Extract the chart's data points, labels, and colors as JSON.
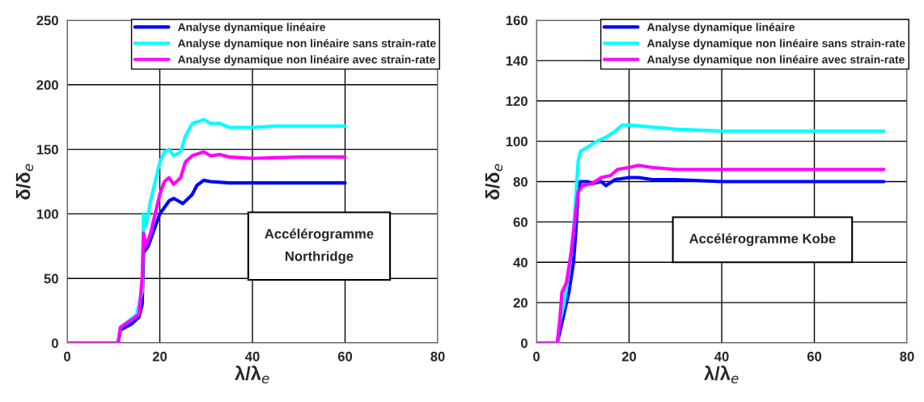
{
  "chart_data": [
    {
      "type": "line",
      "xlabel": "λ/λ$_{e}$",
      "ylabel": "δ/δ$_{e}$",
      "xlim": [
        0,
        80
      ],
      "xticks": [
        0,
        20,
        40,
        60,
        80
      ],
      "ylim": [
        0,
        250
      ],
      "yticks": [
        0,
        50,
        100,
        150,
        200,
        250
      ],
      "grid": true,
      "legend": "top right",
      "marker": "none",
      "line_style": "solid",
      "annotations": [
        "Accélérogramme\nNorthridge"
      ],
      "series": [
        {
          "name": "Analyse dynamique linéaire",
          "color": "#0000ff",
          "x": [
            0,
            11,
            11.5,
            14,
            15.5,
            16.2,
            16.5,
            17.5,
            19,
            20,
            22,
            23,
            25,
            27,
            28,
            29.5,
            31,
            35,
            40,
            50,
            60
          ],
          "values": [
            0,
            0,
            10,
            15,
            20,
            30,
            70,
            75,
            90,
            100,
            110,
            112,
            108,
            115,
            122,
            126,
            125,
            124,
            124,
            124,
            124
          ]
        },
        {
          "name": "Analyse dynamique non linéaire sans strain-rate",
          "color": "#00ffff",
          "x": [
            0,
            11,
            11.5,
            15,
            16.2,
            16.5,
            17,
            18,
            19,
            20,
            21,
            22,
            23,
            24.5,
            25.5,
            27,
            29.5,
            31,
            33,
            35,
            40,
            45,
            50,
            60
          ],
          "values": [
            0,
            0,
            12,
            22,
            40,
            100,
            90,
            110,
            125,
            140,
            148,
            150,
            145,
            148,
            160,
            170,
            173,
            170,
            170,
            167,
            167,
            168,
            168,
            168
          ]
        },
        {
          "name": "Analyse dynamique non linéaire avec strain-rate",
          "color": "#ff00ff",
          "x": [
            0,
            11,
            11.5,
            14,
            15.5,
            16.2,
            16.5,
            17,
            18,
            19,
            20,
            21,
            22,
            23,
            24.5,
            25.5,
            27,
            29.5,
            31,
            33,
            35,
            40,
            50,
            60
          ],
          "values": [
            0,
            0,
            12,
            18,
            22,
            50,
            85,
            75,
            85,
            100,
            115,
            125,
            128,
            123,
            128,
            140,
            145,
            148,
            145,
            146,
            144,
            143,
            144,
            144
          ]
        }
      ]
    },
    {
      "type": "line",
      "xlabel": "λ/λ$_{e}$",
      "ylabel": "δ/δ$_{e}$",
      "xlim": [
        0,
        80
      ],
      "xticks": [
        0,
        20,
        40,
        60,
        80
      ],
      "ylim": [
        0,
        160
      ],
      "yticks": [
        0,
        20,
        40,
        60,
        80,
        100,
        120,
        140,
        160
      ],
      "grid": true,
      "legend": "top right",
      "marker": "none",
      "line_style": "solid",
      "annotations": [
        "Accélérogramme Kobe"
      ],
      "series": [
        {
          "name": "Analyse dynamique linéaire",
          "color": "#0000ff",
          "x": [
            0,
            4.5,
            5,
            6,
            7,
            8,
            8.5,
            9,
            9.5,
            11,
            12,
            14,
            15,
            17,
            20,
            22,
            25,
            30,
            40,
            60,
            75
          ],
          "values": [
            0,
            0,
            5,
            15,
            25,
            40,
            55,
            75,
            80,
            80,
            79,
            80,
            78,
            81,
            82,
            82,
            81,
            81,
            80,
            80,
            80
          ]
        },
        {
          "name": "Analyse dynamique non linéaire sans strain-rate",
          "color": "#00ffff",
          "x": [
            0,
            4.5,
            5,
            6,
            7,
            8,
            8.5,
            9,
            9.5,
            11,
            13,
            15,
            17,
            18.5,
            20,
            25,
            30,
            40,
            60,
            75
          ],
          "values": [
            0,
            0,
            10,
            20,
            35,
            55,
            null,
            90,
            95,
            97,
            100,
            102,
            105,
            108,
            108,
            107,
            106,
            105,
            105,
            105
          ]
        },
        {
          "name": "Analyse dynamique non linéaire avec strain-rate",
          "color": "#ff00ff",
          "x": [
            0,
            4.5,
            5,
            5.5,
            6.5,
            7.5,
            8,
            9,
            10,
            12,
            14,
            16,
            17.5,
            20,
            22,
            25,
            30,
            40,
            75
          ],
          "values": [
            0,
            0,
            10,
            25,
            30,
            45,
            55,
            75,
            78,
            79,
            82,
            83,
            86,
            87,
            88,
            87,
            86,
            86,
            86
          ]
        }
      ]
    }
  ]
}
